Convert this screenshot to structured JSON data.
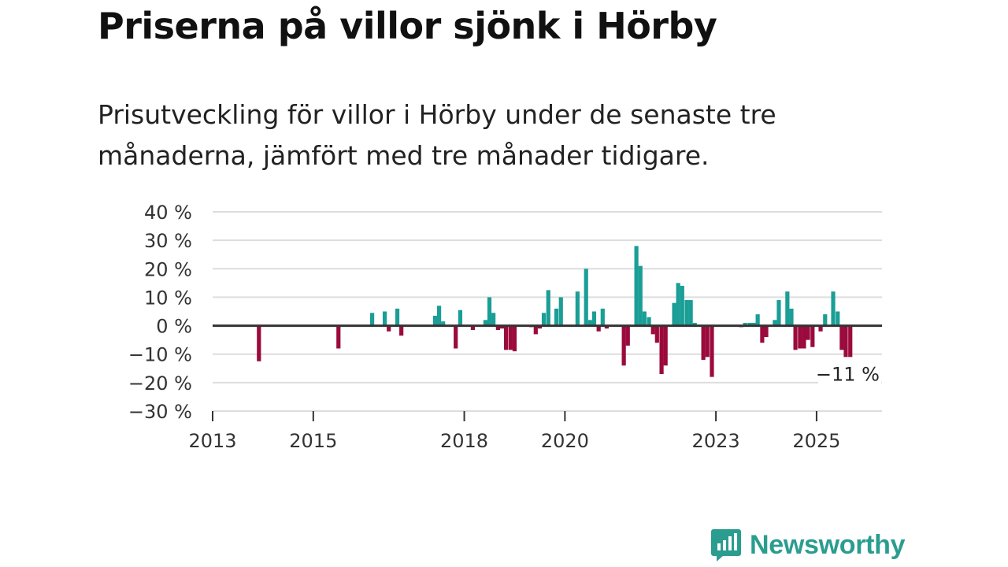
{
  "title": "Priserna på villor sjönk i Hörby",
  "subtitle": "Prisutveckling för villor i Hörby under de senaste tre månaderna, jämfört med tre månader tidigare.",
  "brand": {
    "name": "Newsworthy"
  },
  "colors": {
    "positive": "#1a9e96",
    "negative": "#9b0a3c",
    "zero_line": "#333333",
    "grid": "#dddddd",
    "brand": "#2a9d8f"
  },
  "chart_data": {
    "type": "bar",
    "title": "",
    "xlabel": "",
    "ylabel": "",
    "ylim": [
      -30,
      40
    ],
    "y_ticks": [
      40,
      30,
      20,
      10,
      0,
      -10,
      -20,
      -30
    ],
    "y_tick_labels": [
      "40 %",
      "30 %",
      "20 %",
      "10 %",
      "0 %",
      "−10 %",
      "−20 %",
      "−30 %"
    ],
    "x_range": [
      2013.0,
      2026.3
    ],
    "x_ticks": [
      2013,
      2015,
      2018,
      2020,
      2023,
      2025
    ],
    "x_tick_labels": [
      "2013",
      "2015",
      "2018",
      "2020",
      "2023",
      "2025"
    ],
    "end_label": "−11 %",
    "series": [
      {
        "name": "Prisutveckling",
        "points": [
          [
            2013.92,
            -12.5
          ],
          [
            2015.5,
            -8
          ],
          [
            2016.17,
            4.5
          ],
          [
            2016.42,
            5
          ],
          [
            2016.5,
            -2
          ],
          [
            2016.67,
            6
          ],
          [
            2016.75,
            -3.5
          ],
          [
            2017.42,
            3.5
          ],
          [
            2017.5,
            7
          ],
          [
            2017.58,
            1.5
          ],
          [
            2017.83,
            -8
          ],
          [
            2017.92,
            5.5
          ],
          [
            2018.17,
            -1.5
          ],
          [
            2018.42,
            2
          ],
          [
            2018.5,
            10
          ],
          [
            2018.58,
            4.5
          ],
          [
            2018.67,
            -1.5
          ],
          [
            2018.75,
            -1
          ],
          [
            2018.83,
            -8.5
          ],
          [
            2018.92,
            -8.5
          ],
          [
            2019.0,
            -9
          ],
          [
            2019.33,
            -0.5
          ],
          [
            2019.42,
            -3
          ],
          [
            2019.5,
            -1
          ],
          [
            2019.25,
            0
          ],
          [
            2019.58,
            4.5
          ],
          [
            2019.67,
            12.5
          ],
          [
            2019.83,
            6
          ],
          [
            2019.92,
            10
          ],
          [
            2020.25,
            12
          ],
          [
            2020.42,
            20
          ],
          [
            2020.5,
            2
          ],
          [
            2020.58,
            5
          ],
          [
            2020.67,
            -2
          ],
          [
            2020.75,
            6
          ],
          [
            2020.83,
            -1
          ],
          [
            2021.17,
            -14
          ],
          [
            2021.25,
            -7
          ],
          [
            2021.42,
            28
          ],
          [
            2021.5,
            21
          ],
          [
            2021.58,
            5
          ],
          [
            2021.67,
            3
          ],
          [
            2021.75,
            -3
          ],
          [
            2021.83,
            -6
          ],
          [
            2021.92,
            -17
          ],
          [
            2022.0,
            -14
          ],
          [
            2022.17,
            8
          ],
          [
            2022.25,
            15
          ],
          [
            2022.33,
            14
          ],
          [
            2022.42,
            9
          ],
          [
            2022.5,
            9
          ],
          [
            2022.58,
            1
          ],
          [
            2022.75,
            -12
          ],
          [
            2022.83,
            -11
          ],
          [
            2022.92,
            -18
          ],
          [
            2023.5,
            -0.5
          ],
          [
            2023.58,
            1
          ],
          [
            2023.67,
            1
          ],
          [
            2023.75,
            1
          ],
          [
            2023.83,
            4
          ],
          [
            2023.92,
            -6
          ],
          [
            2024.0,
            -4
          ],
          [
            2024.17,
            2
          ],
          [
            2024.25,
            9
          ],
          [
            2024.42,
            12
          ],
          [
            2024.5,
            6
          ],
          [
            2024.58,
            -8.5
          ],
          [
            2024.67,
            -8
          ],
          [
            2024.75,
            -8
          ],
          [
            2024.83,
            -5
          ],
          [
            2024.92,
            -7.5
          ],
          [
            2025.08,
            -2
          ],
          [
            2025.17,
            4
          ],
          [
            2025.33,
            12
          ],
          [
            2025.42,
            5
          ],
          [
            2025.5,
            -8.5
          ],
          [
            2025.58,
            -11
          ],
          [
            2025.67,
            -11
          ]
        ]
      }
    ]
  }
}
